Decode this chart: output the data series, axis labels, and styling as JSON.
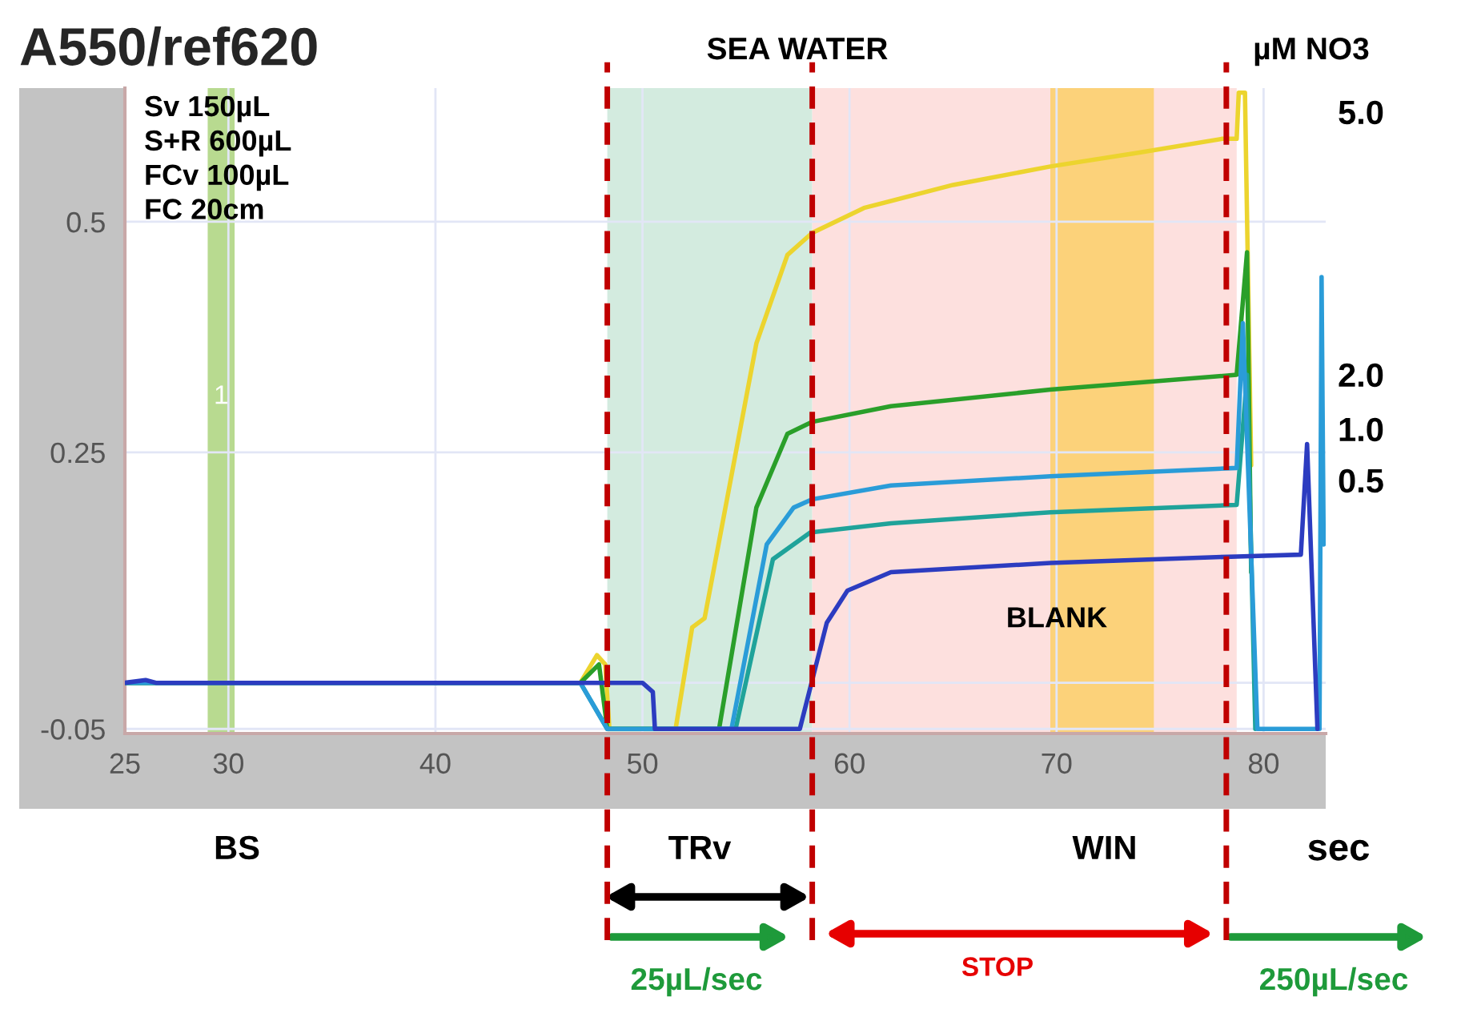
{
  "chart_data": {
    "type": "line",
    "title": "A550/ref620",
    "xlim": [
      25,
      83
    ],
    "xticks": [
      25,
      30,
      40,
      50,
      60,
      70,
      80
    ],
    "ylim": [
      -0.055,
      0.645
    ],
    "yticks": [
      0.5,
      0.25,
      {
        "value": 0,
        "label": null
      },
      -0.05
    ],
    "grid": true,
    "legend": false,
    "series": [
      {
        "color": "#ecd42e",
        "x": [
          25,
          35,
          47,
          47.8,
          48.2,
          48.4,
          51,
          51.6,
          52.4,
          53,
          55.5,
          57,
          58.2,
          60.7,
          65,
          69.7,
          74,
          78,
          78.7,
          78.8,
          79.1,
          79.4
        ],
        "values": [
          0,
          0,
          0,
          0.03,
          0.02,
          -0.05,
          null,
          -0.05,
          0.06,
          0.07,
          0.368,
          0.464,
          0.488,
          0.515,
          0.54,
          0.56,
          0.575,
          0.59,
          0.59,
          0.64,
          0.64,
          0.236
        ]
      },
      {
        "color": "#2a9f2a",
        "x": [
          25,
          47,
          47.9,
          48.3,
          51,
          53.7,
          55.5,
          57,
          58.2,
          62,
          69.7,
          78.7,
          79.2,
          79.4
        ],
        "values": [
          0,
          0,
          0.02,
          -0.05,
          null,
          -0.05,
          0.19,
          0.27,
          0.283,
          0.3,
          0.318,
          0.334,
          0.467,
          0.12
        ]
      },
      {
        "color": "#1fa39a",
        "x": [
          25,
          47,
          48.3,
          51,
          54.5,
          56.3,
          58.1,
          62,
          69.7,
          78.7,
          79.2,
          79.6
        ],
        "values": [
          0,
          0,
          -0.05,
          null,
          -0.05,
          0.134,
          0.163,
          0.173,
          0.185,
          0.193,
          0.334,
          -0.05
        ]
      },
      {
        "color": "#2a9cd8",
        "x": [
          25,
          47,
          48.3,
          51,
          54.3,
          56,
          57.3,
          58.2,
          62,
          69.7,
          78.7,
          79,
          79.7,
          81,
          82.7,
          82.8,
          82.9
        ],
        "values": [
          0,
          0,
          -0.05,
          null,
          -0.05,
          0.15,
          0.19,
          0.199,
          0.214,
          0.224,
          0.233,
          0.39,
          -0.05,
          null,
          -0.05,
          0.44,
          0.15
        ]
      },
      {
        "color": "#2c3cc0",
        "x": [
          25,
          26,
          26.5,
          50,
          50.5,
          50.6,
          54,
          57.6,
          58.9,
          59.9,
          62,
          69.7,
          78.7,
          81.8,
          82.1,
          82.6
        ],
        "values": [
          0,
          0.003,
          0,
          0,
          -0.01,
          -0.05,
          null,
          -0.05,
          0.065,
          0.1,
          0.12,
          0.13,
          0.137,
          0.139,
          0.259,
          -0.05
        ]
      }
    ],
    "bands": [
      {
        "axis": "x",
        "from": 29.0,
        "to": 30.3,
        "label": "1",
        "color": "#b8da90"
      },
      {
        "axis": "x",
        "from": 48.3,
        "to": 58.2,
        "color": "#d3ebdf"
      },
      {
        "axis": "x",
        "from": 58.2,
        "to": 78.7,
        "color": "#fde0de"
      },
      {
        "axis": "x",
        "from": 69.7,
        "to": 74.7,
        "color": "#fcd27a"
      }
    ],
    "ref_lines": [
      {
        "axis": "x",
        "value": 48.3,
        "color": "#c00000",
        "line_style": "dashed"
      },
      {
        "axis": "x",
        "value": 58.2,
        "color": "#c00000",
        "line_style": "dashed"
      },
      {
        "axis": "x",
        "value": 78.2,
        "color": "#c00000",
        "line_style": "dashed"
      }
    ],
    "annotations": [
      "Sv 150µL\nS+R 600µL\nFCv 100µL\nFC 20cm",
      "SEA WATER",
      "µM NO3",
      "5.0",
      "2.0",
      "1.0",
      "0.5",
      "BLANK",
      "BS",
      "TRv",
      "WIN",
      "sec",
      "25µL/sec",
      "STOP",
      "250µL/sec"
    ]
  }
}
